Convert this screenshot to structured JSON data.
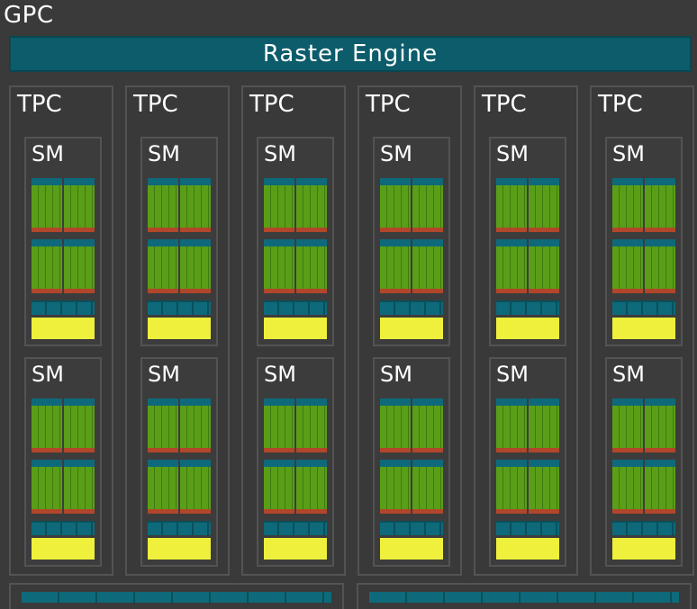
{
  "gpc": {
    "title": "GPC",
    "raster_engine_label": "Raster Engine",
    "tpcs": [
      {
        "label": "TPC",
        "sms": [
          {
            "label": "SM"
          },
          {
            "label": "SM"
          }
        ]
      },
      {
        "label": "TPC",
        "sms": [
          {
            "label": "SM"
          },
          {
            "label": "SM"
          }
        ]
      },
      {
        "label": "TPC",
        "sms": [
          {
            "label": "SM"
          },
          {
            "label": "SM"
          }
        ]
      },
      {
        "label": "TPC",
        "sms": [
          {
            "label": "SM"
          },
          {
            "label": "SM"
          }
        ]
      },
      {
        "label": "TPC",
        "sms": [
          {
            "label": "SM"
          },
          {
            "label": "SM"
          }
        ]
      },
      {
        "label": "TPC",
        "sms": [
          {
            "label": "SM"
          },
          {
            "label": "SM"
          }
        ]
      }
    ]
  },
  "colors": {
    "raster_engine": "#0c5c6b",
    "cores": "#5a9e18",
    "cache": "#eef03c",
    "accent_red": "#b2462b",
    "teal": "#0e6a7a",
    "background": "#3a3a3a"
  }
}
